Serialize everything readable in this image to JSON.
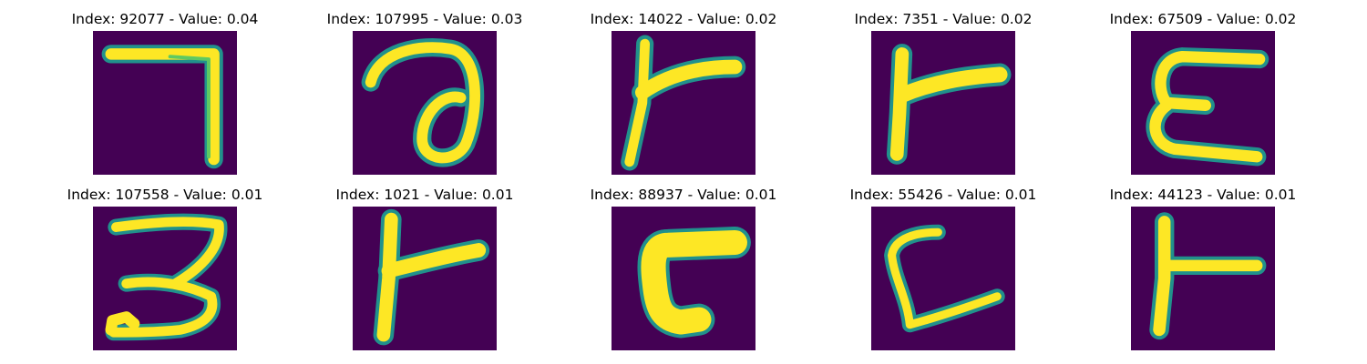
{
  "figure": {
    "panels": [
      {
        "title": "Index: 92077 - Value: 0.04",
        "glyph": "seven-glyph"
      },
      {
        "title": "Index: 107995 - Value: 0.03",
        "glyph": "a-glyph"
      },
      {
        "title": "Index: 14022 - Value: 0.02",
        "glyph": "r-glyph"
      },
      {
        "title": "Index: 7351 - Value: 0.02",
        "glyph": "r-glyph"
      },
      {
        "title": "Index: 67509 - Value: 0.02",
        "glyph": "e-glyph"
      },
      {
        "title": "Index: 107558 - Value: 0.01",
        "glyph": "three-glyph"
      },
      {
        "title": "Index: 1021 - Value: 0.01",
        "glyph": "r-glyph"
      },
      {
        "title": "Index: 88937 - Value: 0.01",
        "glyph": "r-block-glyph"
      },
      {
        "title": "Index: 55426 - Value: 0.01",
        "glyph": "l-glyph"
      },
      {
        "title": "Index: 44123 - Value: 0.01",
        "glyph": "t-glyph"
      }
    ],
    "colors": {
      "background": "#440154",
      "edge": "#21918c",
      "mid": "#5ec962",
      "stroke": "#fde725"
    }
  }
}
